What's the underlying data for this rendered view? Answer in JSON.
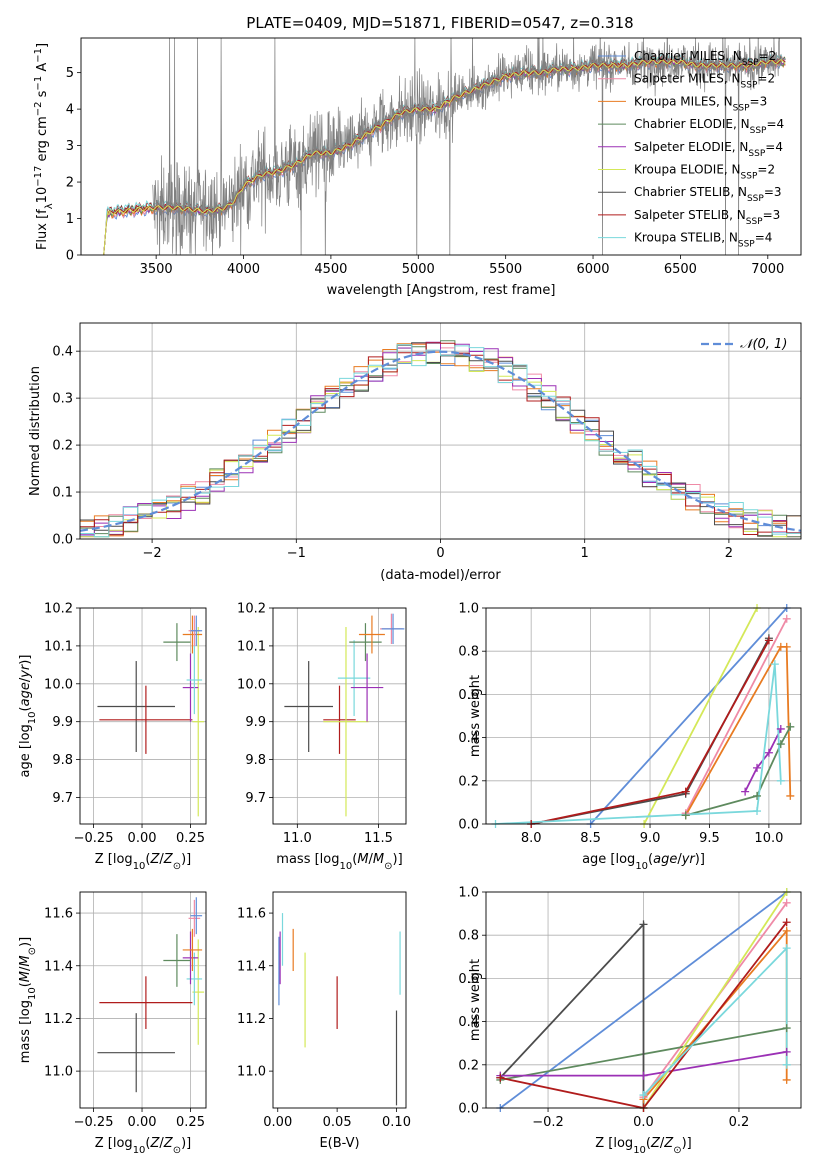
{
  "figure": {
    "title": "PLATE=0409, MJD=51871, FIBERID=0547, z=0.318"
  },
  "colors": {
    "chabrier_miles": "#5f8dd8",
    "salpeter_miles": "#ef8aa6",
    "kroupa_miles": "#e87b22",
    "chabrier_elodie": "#5e8a5e",
    "salpeter_elodie": "#9b30b5",
    "kroupa_elodie": "#d4e858",
    "chabrier_stelib": "#4c4c4c",
    "salpeter_stelib": "#b01c1c",
    "kroupa_stelib": "#7ad8dc",
    "data": "#808080"
  },
  "chart_data": [
    {
      "id": "spectrum",
      "type": "line",
      "xlabel": "wavelength [Angstrom, rest frame]",
      "ylabel": "Flux [f_λ10^-17 erg cm^-2 s^-1 A^-1]",
      "xlim": [
        3070,
        7190
      ],
      "ylim": [
        0,
        5.95
      ],
      "xticks": [
        3500,
        4000,
        4500,
        5000,
        5500,
        6000,
        6500,
        7000
      ],
      "yticks": [
        0,
        1,
        2,
        3,
        4,
        5
      ],
      "grid": false,
      "legend_position": "top-right",
      "legend": [
        {
          "key": "chabrier_miles",
          "label": "Chabrier MILES, N",
          "sub": "SSP",
          "tail": "=2"
        },
        {
          "key": "salpeter_miles",
          "label": "Salpeter MILES, N",
          "sub": "SSP",
          "tail": "=2"
        },
        {
          "key": "kroupa_miles",
          "label": "Kroupa MILES, N",
          "sub": "SSP",
          "tail": "=3"
        },
        {
          "key": "chabrier_elodie",
          "label": "Chabrier ELODIE, N",
          "sub": "SSP",
          "tail": "=4"
        },
        {
          "key": "salpeter_elodie",
          "label": "Salpeter ELODIE, N",
          "sub": "SSP",
          "tail": "=4"
        },
        {
          "key": "kroupa_elodie",
          "label": "Kroupa ELODIE, N",
          "sub": "SSP",
          "tail": "=2"
        },
        {
          "key": "chabrier_stelib",
          "label": "Chabrier STELIB, N",
          "sub": "SSP",
          "tail": "=3"
        },
        {
          "key": "salpeter_stelib",
          "label": "Salpeter STELIB, N",
          "sub": "SSP",
          "tail": "=3"
        },
        {
          "key": "kroupa_stelib",
          "label": "Kroupa STELIB, N",
          "sub": "SSP",
          "tail": "=4"
        }
      ],
      "model_knots_x": [
        3200,
        3220,
        3300,
        3400,
        3500,
        3600,
        3700,
        3800,
        3900,
        3950,
        4000,
        4100,
        4200,
        4300,
        4400,
        4500,
        4600,
        4700,
        4800,
        4900,
        5000,
        5100,
        5200,
        5300,
        5400,
        5500,
        5600,
        5700,
        5800,
        5900,
        6000,
        6100,
        6200,
        6300,
        6400,
        6500,
        6600,
        6700,
        6800,
        6900,
        7000,
        7100
      ],
      "model_knots_y": [
        0,
        1.15,
        1.2,
        1.25,
        1.3,
        1.3,
        1.25,
        1.2,
        1.3,
        1.5,
        1.9,
        2.2,
        2.3,
        2.5,
        2.8,
        2.8,
        3.0,
        3.3,
        3.6,
        3.9,
        4.0,
        4.0,
        4.3,
        4.5,
        4.7,
        4.9,
        5.0,
        5.0,
        5.1,
        5.1,
        5.2,
        5.2,
        5.2,
        5.3,
        5.3,
        5.3,
        5.2,
        5.2,
        5.2,
        5.2,
        5.3,
        5.3
      ],
      "data_range": [
        3480,
        7080
      ]
    },
    {
      "id": "residuals",
      "type": "histogram",
      "xlabel": "(data-model)/error",
      "ylabel": "Normed distribution",
      "xlim": [
        -2.5,
        2.5
      ],
      "ylim": [
        0,
        0.46
      ],
      "xticks": [
        -2,
        -1,
        0,
        1,
        2
      ],
      "yticks": [
        0,
        0.1,
        0.2,
        0.3,
        0.4
      ],
      "grid": true,
      "legend_position": "top-right",
      "reference_label": "N(0,1)",
      "bin_width": 0.1,
      "bin_start": -2.5
    },
    {
      "id": "z_vs_age",
      "type": "errorbar",
      "xlabel": "Z [log10(Z/Z⊙)]",
      "ylabel": "age [log10(age/yr)]",
      "xlim": [
        -0.32,
        0.33
      ],
      "ylim": [
        9.63,
        10.2
      ],
      "xticks": [
        -0.25,
        0.0,
        0.25
      ],
      "yticks": [
        9.7,
        9.8,
        9.9,
        10.0,
        10.1,
        10.2
      ],
      "grid": true,
      "points": [
        {
          "key": "chabrier_stelib",
          "x": -0.03,
          "xerr": 0.2,
          "y": 9.94,
          "yerr": 0.12
        },
        {
          "key": "salpeter_stelib",
          "x": 0.02,
          "xerr": 0.24,
          "y": 9.905,
          "yerr": 0.09
        },
        {
          "key": "kroupa_elodie",
          "x": 0.29,
          "xerr": 0.03,
          "y": 9.9,
          "yerr": 0.25
        },
        {
          "key": "chabrier_elodie",
          "x": 0.18,
          "xerr": 0.07,
          "y": 10.11,
          "yerr": 0.05
        },
        {
          "key": "salpeter_elodie",
          "x": 0.25,
          "xerr": 0.04,
          "y": 9.99,
          "yerr": 0.09
        },
        {
          "key": "kroupa_stelib",
          "x": 0.27,
          "xerr": 0.04,
          "y": 10.01,
          "yerr": 0.09
        },
        {
          "key": "kroupa_miles",
          "x": 0.26,
          "xerr": 0.05,
          "y": 10.13,
          "yerr": 0.05
        },
        {
          "key": "salpeter_miles",
          "x": 0.27,
          "xerr": 0.03,
          "y": 10.14,
          "yerr": 0.04
        },
        {
          "key": "chabrier_miles",
          "x": 0.28,
          "xerr": 0.03,
          "y": 10.14,
          "yerr": 0.04
        }
      ]
    },
    {
      "id": "mass_vs_age",
      "type": "errorbar",
      "xlabel": "mass [log10(M/M⊙)]",
      "ylabel": "",
      "xlim": [
        10.85,
        11.67
      ],
      "ylim": [
        9.63,
        10.2
      ],
      "xticks": [
        11.0,
        11.5
      ],
      "yticks": [
        9.7,
        9.8,
        9.9,
        10.0,
        10.1,
        10.2
      ],
      "grid": true,
      "points": [
        {
          "key": "chabrier_stelib",
          "x": 11.07,
          "xerr": 0.15,
          "y": 9.94,
          "yerr": 0.12
        },
        {
          "key": "salpeter_stelib",
          "x": 11.26,
          "xerr": 0.1,
          "y": 9.905,
          "yerr": 0.09
        },
        {
          "key": "kroupa_elodie",
          "x": 11.3,
          "xerr": 0.14,
          "y": 9.9,
          "yerr": 0.25
        },
        {
          "key": "kroupa_stelib",
          "x": 11.35,
          "xerr": 0.1,
          "y": 10.015,
          "yerr": 0.1
        },
        {
          "key": "salpeter_elodie",
          "x": 11.43,
          "xerr": 0.1,
          "y": 9.99,
          "yerr": 0.09
        },
        {
          "key": "chabrier_elodie",
          "x": 11.42,
          "xerr": 0.1,
          "y": 10.11,
          "yerr": 0.05
        },
        {
          "key": "kroupa_miles",
          "x": 11.46,
          "xerr": 0.08,
          "y": 10.13,
          "yerr": 0.05
        },
        {
          "key": "salpeter_miles",
          "x": 11.58,
          "xerr": 0.07,
          "y": 10.145,
          "yerr": 0.04
        },
        {
          "key": "chabrier_miles",
          "x": 11.59,
          "xerr": 0.07,
          "y": 10.145,
          "yerr": 0.04
        }
      ]
    },
    {
      "id": "age_weights",
      "type": "line",
      "xlabel": "age [log10(age/yr)]",
      "ylabel": "mass weight",
      "xlim": [
        7.62,
        10.27
      ],
      "ylim": [
        0,
        1.0
      ],
      "xticks": [
        8.0,
        8.5,
        9.0,
        9.5,
        10.0
      ],
      "yticks": [
        0,
        0.2,
        0.4,
        0.6,
        0.8,
        1.0
      ],
      "grid": true,
      "series": [
        {
          "key": "chabrier_miles",
          "x": [
            8.5,
            10.15
          ],
          "y": [
            0.0,
            1.0
          ]
        },
        {
          "key": "salpeter_miles",
          "x": [
            9.3,
            10.15
          ],
          "y": [
            0.05,
            0.95
          ]
        },
        {
          "key": "kroupa_miles",
          "x": [
            9.3,
            10.1,
            10.15,
            10.18
          ],
          "y": [
            0.04,
            0.82,
            0.82,
            0.13
          ]
        },
        {
          "key": "chabrier_elodie",
          "x": [
            9.3,
            9.9,
            10.1,
            10.18
          ],
          "y": [
            0.04,
            0.13,
            0.37,
            0.45
          ]
        },
        {
          "key": "salpeter_elodie",
          "x": [
            9.8,
            9.9,
            10.0,
            10.1
          ],
          "y": [
            0.15,
            0.26,
            0.33,
            0.44
          ]
        },
        {
          "key": "kroupa_elodie",
          "x": [
            8.95,
            9.9
          ],
          "y": [
            0.0,
            1.0
          ]
        },
        {
          "key": "chabrier_stelib",
          "x": [
            8.0,
            9.3,
            10.0
          ],
          "y": [
            0.0,
            0.14,
            0.86
          ]
        },
        {
          "key": "salpeter_stelib",
          "x": [
            8.0,
            9.3,
            10.0
          ],
          "y": [
            0.0,
            0.15,
            0.85
          ]
        },
        {
          "key": "kroupa_stelib",
          "x": [
            7.7,
            9.9,
            10.05,
            10.1
          ],
          "y": [
            0.0,
            0.06,
            0.74,
            0.2
          ]
        }
      ]
    },
    {
      "id": "z_vs_mass",
      "type": "errorbar",
      "xlabel": "Z [log10(Z/Z⊙)]",
      "ylabel": "mass [log10(M/M⊙)]",
      "xlim": [
        -0.32,
        0.33
      ],
      "ylim": [
        10.86,
        11.68
      ],
      "xticks": [
        -0.25,
        0.0,
        0.25
      ],
      "yticks": [
        11.0,
        11.2,
        11.4,
        11.6
      ],
      "grid": true,
      "points": [
        {
          "key": "chabrier_stelib",
          "x": -0.03,
          "xerr": 0.2,
          "y": 11.07,
          "yerr": 0.15
        },
        {
          "key": "salpeter_stelib",
          "x": 0.02,
          "xerr": 0.24,
          "y": 11.26,
          "yerr": 0.1
        },
        {
          "key": "kroupa_elodie",
          "x": 0.29,
          "xerr": 0.03,
          "y": 11.3,
          "yerr": 0.2
        },
        {
          "key": "kroupa_stelib",
          "x": 0.27,
          "xerr": 0.04,
          "y": 11.35,
          "yerr": 0.1
        },
        {
          "key": "salpeter_elodie",
          "x": 0.25,
          "xerr": 0.04,
          "y": 11.43,
          "yerr": 0.1
        },
        {
          "key": "chabrier_elodie",
          "x": 0.18,
          "xerr": 0.07,
          "y": 11.42,
          "yerr": 0.1
        },
        {
          "key": "kroupa_miles",
          "x": 0.26,
          "xerr": 0.05,
          "y": 11.46,
          "yerr": 0.08
        },
        {
          "key": "salpeter_miles",
          "x": 0.27,
          "xerr": 0.03,
          "y": 11.58,
          "yerr": 0.07
        },
        {
          "key": "chabrier_miles",
          "x": 0.28,
          "xerr": 0.03,
          "y": 11.59,
          "yerr": 0.07
        }
      ]
    },
    {
      "id": "ebv_vs_mass",
      "type": "errorbar",
      "xlabel": "E(B-V)",
      "ylabel": "",
      "xlim": [
        -0.004,
        0.108
      ],
      "ylim": [
        10.86,
        11.68
      ],
      "xticks": [
        0.0,
        0.05,
        0.1
      ],
      "yticks": [
        11.0,
        11.2,
        11.4,
        11.6
      ],
      "grid": false,
      "points": [
        {
          "key": "chabrier_miles",
          "x": 0.001,
          "xerr": 0,
          "y": 11.38,
          "yerr": 0.13
        },
        {
          "key": "salpeter_elodie",
          "x": 0.002,
          "xerr": 0,
          "y": 11.43,
          "yerr": 0.1
        },
        {
          "key": "kroupa_stelib",
          "x": 0.004,
          "xerr": 0,
          "y": 11.5,
          "yerr": 0.1
        },
        {
          "key": "kroupa_miles",
          "x": 0.013,
          "xerr": 0,
          "y": 11.46,
          "yerr": 0.08
        },
        {
          "key": "kroupa_elodie",
          "x": 0.023,
          "xerr": 0,
          "y": 11.27,
          "yerr": 0.18
        },
        {
          "key": "salpeter_stelib",
          "x": 0.05,
          "xerr": 0,
          "y": 11.26,
          "yerr": 0.1
        },
        {
          "key": "chabrier_stelib",
          "x": 0.1,
          "xerr": 0,
          "y": 11.05,
          "yerr": 0.18
        },
        {
          "key": "kroupa_stelib",
          "x": 0.103,
          "xerr": 0,
          "y": 11.41,
          "yerr": 0.12
        }
      ]
    },
    {
      "id": "z_weights",
      "type": "line",
      "xlabel": "Z [log10(Z/Z⊙)]",
      "ylabel": "mass weight",
      "xlim": [
        -0.33,
        0.33
      ],
      "ylim": [
        0,
        1.0
      ],
      "xticks": [
        -0.2,
        0.0,
        0.2
      ],
      "yticks": [
        0,
        0.2,
        0.4,
        0.6,
        0.8,
        1.0
      ],
      "grid": true,
      "series": [
        {
          "key": "chabrier_miles",
          "x": [
            -0.3,
            0.3
          ],
          "y": [
            0.0,
            1.0
          ]
        },
        {
          "key": "salpeter_miles",
          "x": [
            0.0,
            0.3
          ],
          "y": [
            0.05,
            0.95
          ]
        },
        {
          "key": "kroupa_miles",
          "x": [
            0.0,
            0.3,
            0.3
          ],
          "y": [
            0.04,
            0.82,
            0.13
          ]
        },
        {
          "key": "chabrier_elodie",
          "x": [
            -0.3,
            0.3
          ],
          "y": [
            0.13,
            0.37
          ]
        },
        {
          "key": "salpeter_elodie",
          "x": [
            -0.3,
            0.0,
            0.3
          ],
          "y": [
            0.15,
            0.15,
            0.26
          ]
        },
        {
          "key": "kroupa_elodie",
          "x": [
            0.0,
            0.3
          ],
          "y": [
            0.0,
            1.0
          ]
        },
        {
          "key": "chabrier_stelib",
          "x": [
            -0.3,
            0.0,
            0.0
          ],
          "y": [
            0.14,
            0.85,
            0.0
          ]
        },
        {
          "key": "salpeter_stelib",
          "x": [
            -0.3,
            0.0,
            0.3
          ],
          "y": [
            0.14,
            0.0,
            0.86
          ]
        },
        {
          "key": "kroupa_stelib",
          "x": [
            0.0,
            0.3,
            0.3
          ],
          "y": [
            0.06,
            0.74,
            0.2
          ]
        }
      ]
    }
  ]
}
